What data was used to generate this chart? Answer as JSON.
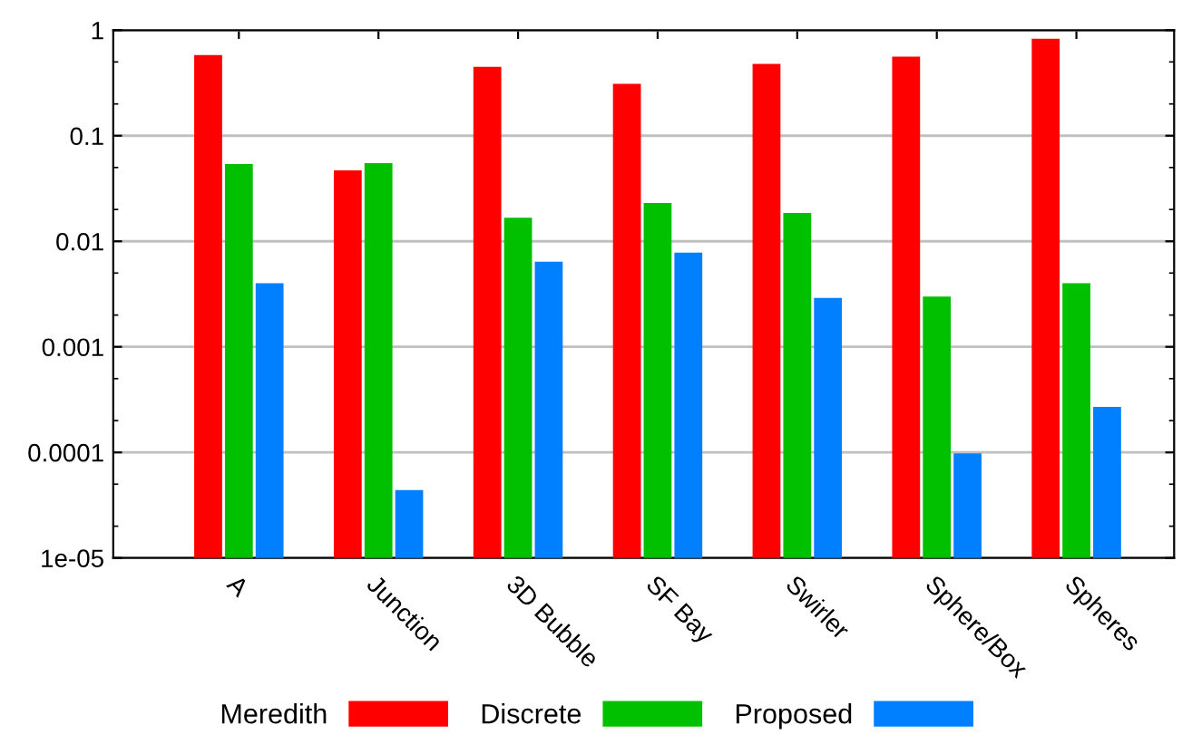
{
  "chart_data": {
    "type": "bar",
    "categories": [
      "A",
      "Junction",
      "3D Bubble",
      "SF Bay",
      "Swirler",
      "Sphere/Box",
      "Spheres"
    ],
    "series": [
      {
        "name": "Meredith",
        "color": "#ff0000",
        "values": [
          0.58,
          0.047,
          0.45,
          0.31,
          0.48,
          0.56,
          0.83
        ]
      },
      {
        "name": "Discrete",
        "color": "#00c000",
        "values": [
          0.054,
          0.055,
          0.0167,
          0.023,
          0.0185,
          0.003,
          0.004
        ]
      },
      {
        "name": "Proposed",
        "color": "#0080ff",
        "values": [
          0.004,
          4.4e-05,
          0.0064,
          0.0078,
          0.0029,
          9.8e-05,
          0.00027
        ]
      }
    ],
    "log": "y",
    "ylim": [
      1e-05,
      1
    ],
    "yticks": [
      1,
      0.1,
      0.01,
      0.001,
      0.0001,
      {
        "value": 1e-05,
        "label": "1e-05"
      }
    ],
    "grid": "y",
    "legend": "bottom"
  }
}
